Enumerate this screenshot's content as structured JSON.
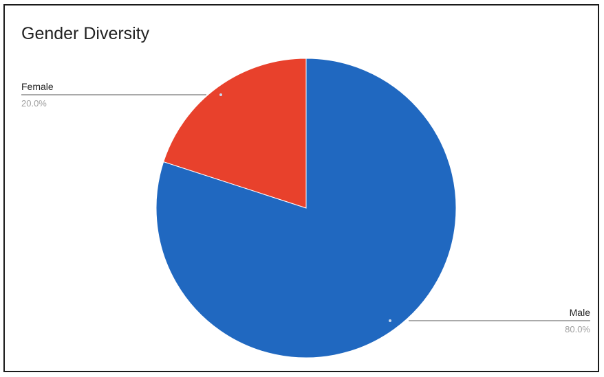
{
  "chart_data": {
    "type": "pie",
    "title": "Gender Diversity",
    "slices": [
      {
        "label": "Female",
        "value": 20.0,
        "percent_label": "20.0%",
        "color": "#e8412c"
      },
      {
        "label": "Male",
        "value": 80.0,
        "percent_label": "80.0%",
        "color": "#2068c0"
      }
    ],
    "start_angle_deg": 0,
    "direction": "counterclockwise",
    "legend": "none",
    "label_style": "callout-lines"
  }
}
